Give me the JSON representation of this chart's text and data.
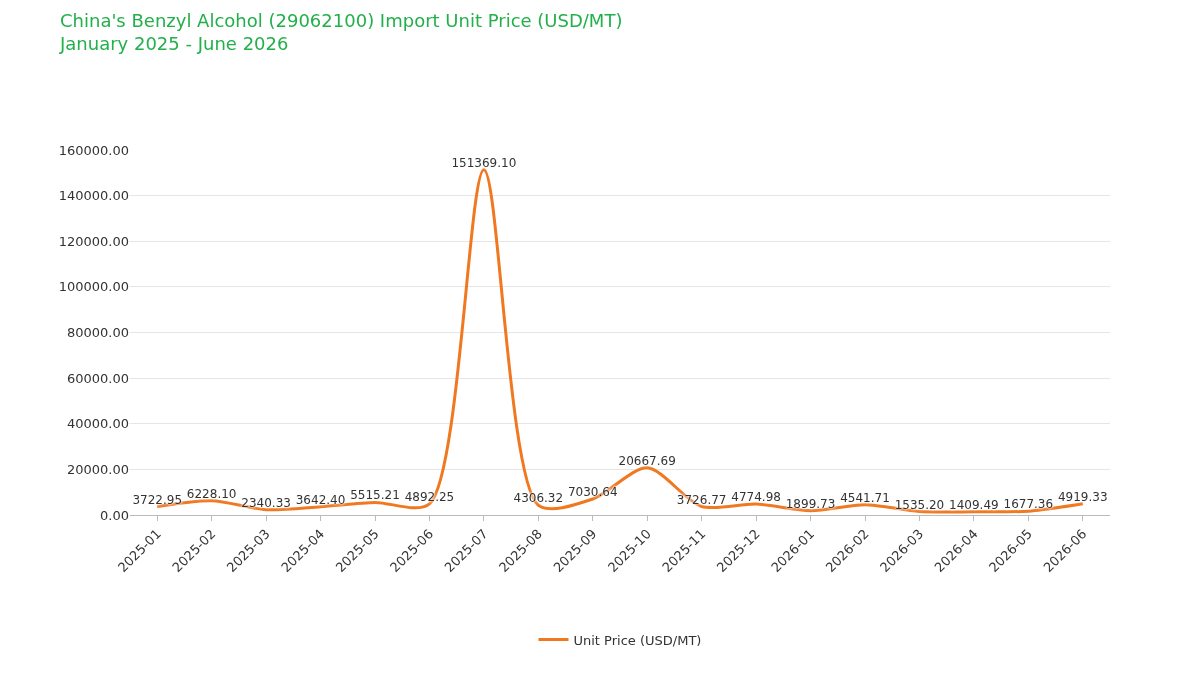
{
  "chart_data": {
    "type": "line",
    "title": "China's Benzyl Alcohol (29062100) Import Unit Price (USD/MT)",
    "subtitle": "January 2025 - June 2026",
    "categories": [
      "2025-01",
      "2025-02",
      "2025-03",
      "2025-04",
      "2025-05",
      "2025-06",
      "2025-07",
      "2025-08",
      "2025-09",
      "2025-10",
      "2025-11",
      "2025-12",
      "2026-01",
      "2026-02",
      "2026-03",
      "2026-04",
      "2026-05",
      "2026-06"
    ],
    "series": [
      {
        "name": "Unit Price (USD/MT)",
        "color": "#f07820",
        "values": [
          3722.95,
          6228.1,
          2340.33,
          3642.4,
          5515.21,
          4892.25,
          151369.1,
          4306.32,
          7030.64,
          20667.69,
          3726.77,
          4774.98,
          1899.73,
          4541.71,
          1535.2,
          1409.49,
          1677.36,
          4919.33
        ],
        "value_labels": [
          "3722.95",
          "6228.10",
          "2340.33",
          "3642.40",
          "5515.21",
          "4892.25",
          "151369.10",
          "4306.32",
          "7030.64",
          "20667.69",
          "3726.77",
          "4774.98",
          "1899.73",
          "4541.71",
          "1535.20",
          "1409.49",
          "1677.36",
          "4919.33"
        ]
      }
    ],
    "ylim": [
      0,
      160000
    ],
    "yticks": [
      {
        "value": 0,
        "label": "0.00"
      },
      {
        "value": 20000,
        "label": "20000.00"
      },
      {
        "value": 40000,
        "label": "40000.00"
      },
      {
        "value": 60000,
        "label": "60000.00"
      },
      {
        "value": 80000,
        "label": "80000.00"
      },
      {
        "value": 100000,
        "label": "100000.00"
      },
      {
        "value": 120000,
        "label": "120000.00"
      },
      {
        "value": 140000,
        "label": "140000.00"
      },
      {
        "value": 160000,
        "label": "160000.00"
      }
    ],
    "grid": "y",
    "legend": "bottom",
    "marker": "none",
    "line_style": "solid"
  }
}
